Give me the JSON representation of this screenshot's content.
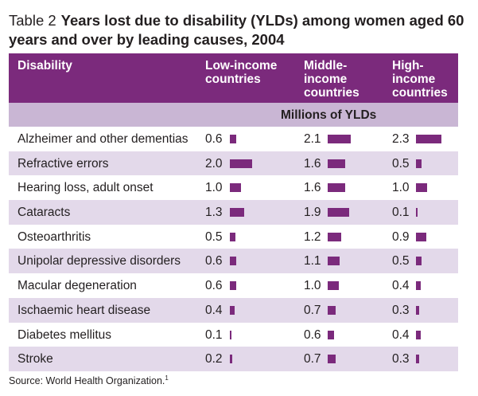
{
  "title": {
    "label": "Table 2",
    "text": "Years lost due to disability (YLDs) among women aged 60 years and over by leading causes, 2004"
  },
  "header": {
    "col1": "Disability",
    "col2": "Low-income countries",
    "col3": "Middle-income countries",
    "col4": "High-income countries"
  },
  "units": "Millions of YLDs",
  "rows": [
    {
      "cause": "Alzheimer and other dementias",
      "low": "0.6",
      "middle": "2.1",
      "high": "2.3"
    },
    {
      "cause": "Refractive errors",
      "low": "2.0",
      "middle": "1.6",
      "high": "0.5"
    },
    {
      "cause": "Hearing loss, adult onset",
      "low": "1.0",
      "middle": "1.6",
      "high": "1.0"
    },
    {
      "cause": "Cataracts",
      "low": "1.3",
      "middle": "1.9",
      "high": "0.1"
    },
    {
      "cause": "Osteoarthritis",
      "low": "0.5",
      "middle": "1.2",
      "high": "0.9"
    },
    {
      "cause": "Unipolar depressive disorders",
      "low": "0.6",
      "middle": "1.1",
      "high": "0.5"
    },
    {
      "cause": "Macular degeneration",
      "low": "0.6",
      "middle": "1.0",
      "high": "0.4"
    },
    {
      "cause": "Ischaemic heart disease",
      "low": "0.4",
      "middle": "0.7",
      "high": "0.3"
    },
    {
      "cause": "Diabetes mellitus",
      "low": "0.1",
      "middle": "0.6",
      "high": "0.4"
    },
    {
      "cause": "Stroke",
      "low": "0.2",
      "middle": "0.7",
      "high": "0.3"
    }
  ],
  "source": {
    "text": "Source: World Health Organization.",
    "ref": "1"
  },
  "colors": {
    "header_bg": "#7b2a7c",
    "subheader_bg": "#c9b6d4",
    "alt_row_bg": "#e3d9ea",
    "bar": "#7b2a7c"
  }
}
